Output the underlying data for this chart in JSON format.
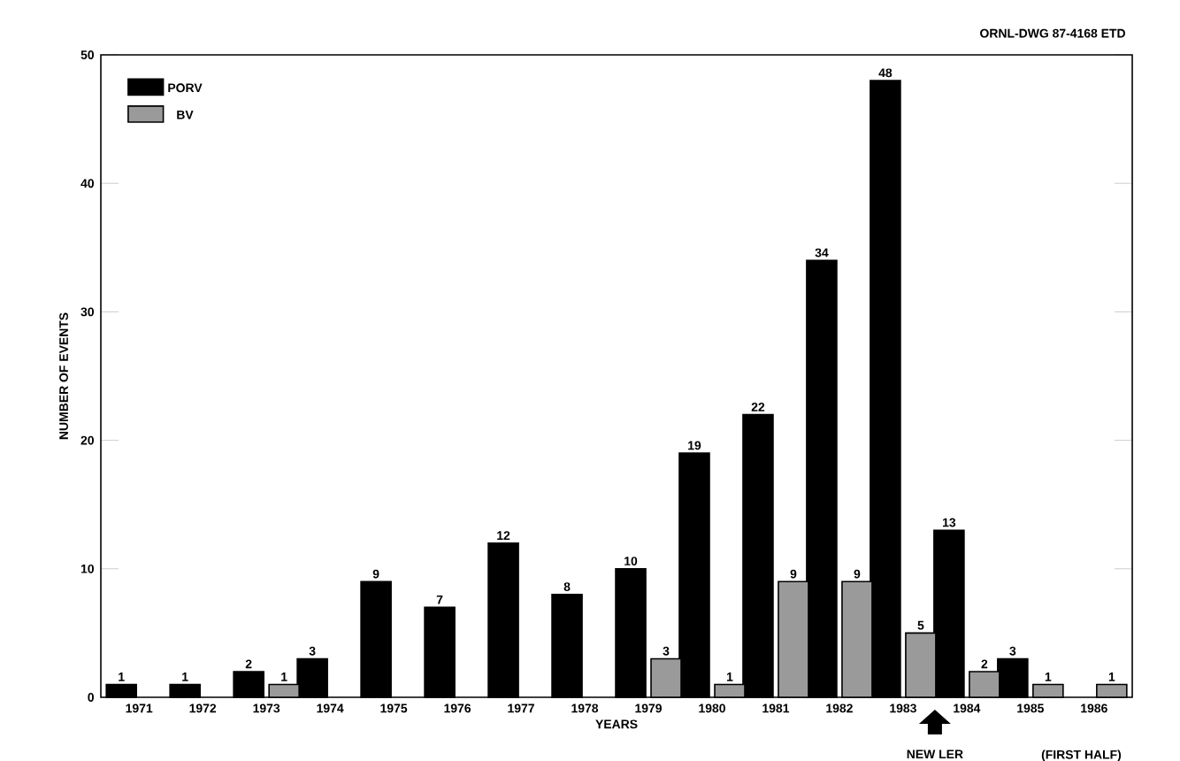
{
  "chart_data": {
    "type": "bar",
    "xlabel": "YEARS",
    "ylabel": "NUMBER OF EVENTS",
    "categories": [
      "1971",
      "1972",
      "1973",
      "1974",
      "1975",
      "1976",
      "1977",
      "1978",
      "1979",
      "1980",
      "1981",
      "1982",
      "1983",
      "1984",
      "1985",
      "1986"
    ],
    "series": [
      {
        "name": "PORV",
        "color": "#000000",
        "values": [
          1,
          1,
          2,
          3,
          9,
          7,
          12,
          8,
          10,
          19,
          22,
          34,
          48,
          13,
          3,
          null
        ]
      },
      {
        "name": "BV",
        "color": "#9a9a9a",
        "values": [
          null,
          null,
          1,
          null,
          null,
          null,
          null,
          null,
          3,
          1,
          9,
          9,
          5,
          2,
          1,
          1
        ]
      }
    ],
    "ylim": [
      0,
      50
    ],
    "yticks": [
      0,
      10,
      20,
      30,
      40,
      50
    ],
    "data_labels": true,
    "legend": "top left",
    "grid": false,
    "annotations": [
      "ORNL-DWG 87-4168 ETD",
      "NEW LER",
      "(FIRST HALF)"
    ]
  }
}
